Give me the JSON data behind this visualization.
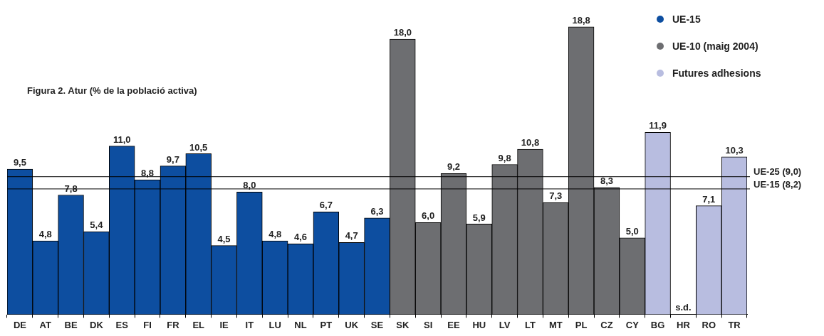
{
  "chart_data": {
    "type": "bar",
    "title": "Figura 2. Atur (% de la població activa)",
    "categories": [
      "DE",
      "AT",
      "BE",
      "DK",
      "ES",
      "FI",
      "FR",
      "EL",
      "IE",
      "IT",
      "LU",
      "NL",
      "PT",
      "UK",
      "SE",
      "SK",
      "SI",
      "EE",
      "HU",
      "LV",
      "LT",
      "MT",
      "PL",
      "CZ",
      "CY",
      "BG",
      "HR",
      "RO",
      "TR"
    ],
    "series": [
      {
        "name": "UE-15",
        "color": "#0d4ea0",
        "values": [
          9.5,
          4.8,
          7.8,
          5.4,
          11.0,
          8.8,
          9.7,
          10.5,
          4.5,
          8.0,
          4.8,
          4.6,
          6.7,
          4.7,
          6.3,
          null,
          null,
          null,
          null,
          null,
          null,
          null,
          null,
          null,
          null,
          null,
          null,
          null,
          null
        ],
        "value_labels": [
          "9,5",
          "4,8",
          "7,8",
          "5,4",
          "11,0",
          "8,8",
          "9,7",
          "10,5",
          "4,5",
          "8,0",
          "4,8",
          "4,6",
          "6,7",
          "4,7",
          "6,3",
          null,
          null,
          null,
          null,
          null,
          null,
          null,
          null,
          null,
          null,
          null,
          null,
          null,
          null
        ]
      },
      {
        "name": "UE-10 (maig 2004)",
        "color": "#6d6e71",
        "values": [
          null,
          null,
          null,
          null,
          null,
          null,
          null,
          null,
          null,
          null,
          null,
          null,
          null,
          null,
          null,
          18.0,
          6.0,
          9.2,
          5.9,
          9.8,
          10.8,
          7.3,
          18.8,
          8.3,
          5.0,
          null,
          null,
          null,
          null
        ],
        "value_labels": [
          null,
          null,
          null,
          null,
          null,
          null,
          null,
          null,
          null,
          null,
          null,
          null,
          null,
          null,
          null,
          "18,0",
          "6,0",
          "9,2",
          "5,9",
          "9,8",
          "10,8",
          "7,3",
          "18,8",
          "8,3",
          "5,0",
          null,
          null,
          null,
          null
        ]
      },
      {
        "name": "Futures adhesions",
        "color": "#b8bde0",
        "values": [
          null,
          null,
          null,
          null,
          null,
          null,
          null,
          null,
          null,
          null,
          null,
          null,
          null,
          null,
          null,
          null,
          null,
          null,
          null,
          null,
          null,
          null,
          null,
          null,
          null,
          11.9,
          null,
          7.1,
          10.3
        ],
        "value_labels": [
          null,
          null,
          null,
          null,
          null,
          null,
          null,
          null,
          null,
          null,
          null,
          null,
          null,
          null,
          null,
          null,
          null,
          null,
          null,
          null,
          null,
          null,
          null,
          null,
          null,
          "11,9",
          "s.d.",
          "7,1",
          "10,3"
        ]
      }
    ],
    "ref_lines": [
      {
        "axis": "y",
        "value": 9.0,
        "label": "UE-25 (9,0)",
        "color": "#000000"
      },
      {
        "axis": "y",
        "value": 8.2,
        "label": "UE-15 (8,2)",
        "color": "#000000"
      }
    ],
    "legend": "top right",
    "grid": false,
    "tick_labels": "x"
  }
}
